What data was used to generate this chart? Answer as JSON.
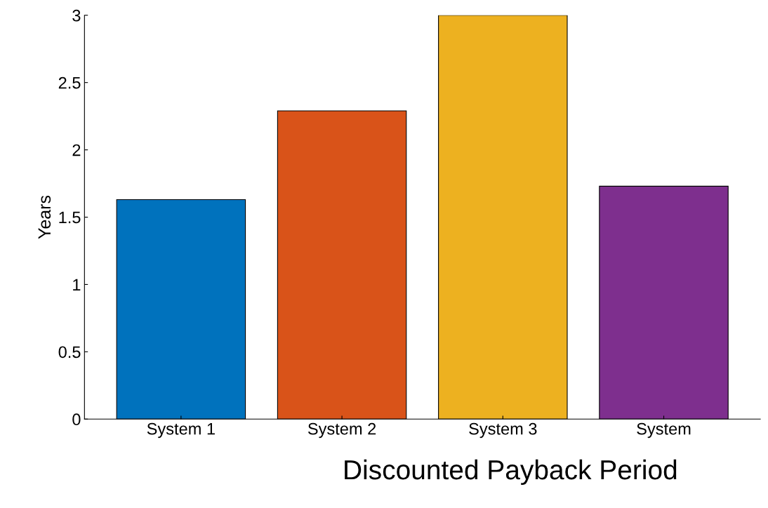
{
  "chart_data": {
    "type": "bar",
    "xlabel": "Discounted Payback Period",
    "ylabel": "Years",
    "categories": [
      "System 1",
      "System 2",
      "System 3",
      "System"
    ],
    "values": [
      1.63,
      2.29,
      3.0,
      1.73
    ],
    "colors": [
      "#0072bd",
      "#d95319",
      "#edb120",
      "#7e2f8e"
    ],
    "ylim": [
      0,
      3
    ],
    "yticks": [
      0,
      0.5,
      1,
      1.5,
      2,
      2.5,
      3
    ],
    "grid": false
  }
}
